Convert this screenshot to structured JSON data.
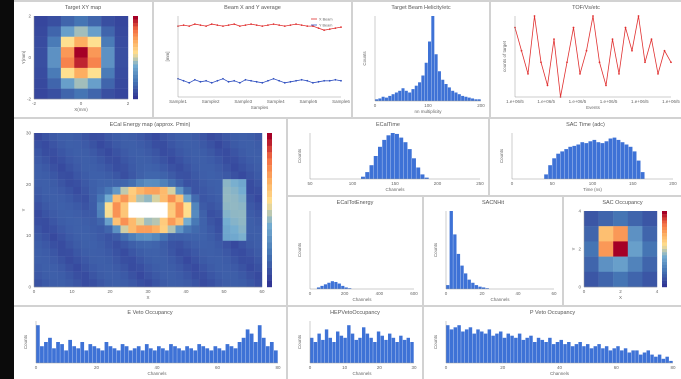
{
  "panels": [
    {
      "key": "target_xy",
      "title": "Target XY map"
    },
    {
      "key": "beam_xy",
      "title": "Beam X and Y average"
    },
    {
      "key": "beam_helicity",
      "title": "Target Beam Helicity/etc"
    },
    {
      "key": "tof_vs",
      "title": "TOF/Vs/etc"
    },
    {
      "key": "ecal_map",
      "title": "ECal Energy map (approx. Pmin)"
    },
    {
      "key": "ecal_time",
      "title": "ECalTime"
    },
    {
      "key": "sac_time",
      "title": "SAC Time (adc)"
    },
    {
      "key": "ecal_energy",
      "title": "ECalTotEnergy"
    },
    {
      "key": "sac_nhit",
      "title": "SACNHit"
    },
    {
      "key": "sac_occ",
      "title": "SAC Occupancy"
    },
    {
      "key": "eveto_occ",
      "title": "E Veto Occupancy"
    },
    {
      "key": "hep_occ",
      "title": "HEPVetoOccupancy"
    },
    {
      "key": "pveto_occ",
      "title": "P Veto Occupancy"
    }
  ],
  "chart_data": [
    {
      "key": "target_xy",
      "type": "heatmap",
      "xlabel": "X(mm)",
      "ylabel": "Y(mm)",
      "x_ticks": [
        "-2",
        "0",
        "2"
      ],
      "y_ticks": [
        "2",
        "0",
        "-2"
      ],
      "colorscale": "rdylbu",
      "values": [
        [
          0.05,
          0.08,
          0.15,
          0.2,
          0.15,
          0.08,
          0.05
        ],
        [
          0.06,
          0.15,
          0.35,
          0.45,
          0.35,
          0.15,
          0.06
        ],
        [
          0.07,
          0.22,
          0.55,
          0.7,
          0.55,
          0.22,
          0.07
        ],
        [
          0.08,
          0.3,
          0.75,
          1.0,
          0.75,
          0.3,
          0.08
        ],
        [
          0.08,
          0.3,
          0.8,
          0.95,
          0.8,
          0.3,
          0.08
        ],
        [
          0.07,
          0.22,
          0.55,
          0.7,
          0.55,
          0.22,
          0.07
        ],
        [
          0.06,
          0.15,
          0.35,
          0.45,
          0.35,
          0.15,
          0.06
        ],
        [
          0.05,
          0.08,
          0.15,
          0.2,
          0.15,
          0.08,
          0.05
        ]
      ]
    },
    {
      "key": "beam_xy",
      "type": "line",
      "xlabel": "Samples",
      "ylabel": "[mm]",
      "x_ticks": [
        "Sample1",
        "Sample2",
        "Sample3",
        "Sample4",
        "Sample5",
        "Sample6"
      ],
      "ylim": [
        -2,
        2
      ],
      "series": [
        {
          "name": "X Beam",
          "color": "#e03030",
          "values": [
            1.5,
            1.55,
            1.5,
            1.6,
            1.55,
            1.5,
            1.6,
            1.55,
            1.5,
            1.55,
            1.6,
            1.5,
            1.55,
            1.6,
            1.55,
            1.5,
            1.55,
            1.6,
            1.55,
            1.5,
            1.55,
            1.6,
            1.55,
            1.5,
            1.5,
            1.4,
            1.3,
            1.35,
            1.4,
            1.45
          ]
        },
        {
          "name": "Y Beam",
          "color": "#3050c0",
          "values": [
            -1.1,
            -1.2,
            -1.3,
            -1.15,
            -1.25,
            -1.2,
            -1.3,
            -1.2,
            -1.1,
            -1.25,
            -1.2,
            -1.3,
            -1.15,
            -1.2,
            -1.25,
            -1.3,
            -1.2,
            -1.1,
            -1.2,
            -1.3,
            -1.25,
            -1.2,
            -1.15,
            -1.2,
            -1.3,
            -1.25,
            -1.2,
            -1.2,
            -1.15,
            -1.2
          ]
        }
      ]
    },
    {
      "key": "beam_helicity",
      "type": "bar",
      "xlabel": "nn  multiplicity",
      "ylabel": "Counts",
      "x_ticks": [
        "0",
        "100",
        "200"
      ],
      "color": "#3e72d6",
      "values": [
        0.02,
        0.03,
        0.05,
        0.04,
        0.06,
        0.08,
        0.1,
        0.12,
        0.15,
        0.12,
        0.1,
        0.14,
        0.18,
        0.22,
        0.3,
        0.45,
        0.7,
        1.0,
        0.55,
        0.35,
        0.25,
        0.2,
        0.16,
        0.12,
        0.1,
        0.08,
        0.06,
        0.05,
        0.04,
        0.03,
        0.02,
        0.02
      ]
    },
    {
      "key": "tof_vs",
      "type": "line",
      "xlabel": "Events",
      "ylabel": "counts of target",
      "x_ticks": [
        "1.e+06/5",
        "1.e+06/5",
        "1.e+06/5",
        "1.e+06/5",
        "1.e+06/5",
        "1.e+06/5"
      ],
      "color": "#e03030",
      "values": [
        0.8,
        0.6,
        0.4,
        0.9,
        0.5,
        0.3,
        0.7,
        0.2,
        0.5,
        0.8,
        0.4,
        0.6,
        0.9,
        0.5,
        0.3,
        0.7,
        0.4,
        0.8,
        0.6,
        0.9,
        0.5,
        0.7,
        0.4,
        0.6,
        0.5
      ]
    },
    {
      "key": "ecal_map",
      "type": "heatmap",
      "xlabel": "X",
      "ylabel": "Y",
      "x_ticks": [
        "0",
        "10",
        "20",
        "30",
        "40",
        "50",
        "60"
      ],
      "y_ticks": [
        "30",
        "20",
        "10",
        "0"
      ],
      "colorscale": "rdylbu",
      "nx": 29,
      "ny": 20
    },
    {
      "key": "ecal_time",
      "type": "bar",
      "xlabel": "Channels",
      "ylabel": "Counts",
      "x_ticks": [
        "50",
        "100",
        "150",
        "200",
        "250"
      ],
      "color": "#3e72d6",
      "values": [
        0,
        0,
        0,
        0,
        0,
        0,
        0,
        0,
        0,
        0,
        0,
        0,
        0.05,
        0.15,
        0.3,
        0.5,
        0.7,
        0.85,
        0.95,
        1.0,
        0.98,
        0.9,
        0.8,
        0.65,
        0.45,
        0.25,
        0.1,
        0.03,
        0,
        0,
        0,
        0,
        0,
        0,
        0,
        0,
        0,
        0,
        0,
        0
      ]
    },
    {
      "key": "sac_time",
      "type": "bar",
      "xlabel": "Time (ns)",
      "ylabel": "Counts",
      "x_ticks": [
        "0",
        "50",
        "100",
        "150",
        "200"
      ],
      "color": "#3e72d6",
      "values": [
        0,
        0,
        0,
        0,
        0,
        0,
        0,
        0,
        0.1,
        0.3,
        0.45,
        0.55,
        0.6,
        0.65,
        0.7,
        0.72,
        0.75,
        0.8,
        0.78,
        0.82,
        0.85,
        0.8,
        0.78,
        0.82,
        0.88,
        0.9,
        0.85,
        0.8,
        0.75,
        0.7,
        0.6,
        0.4,
        0.15,
        0,
        0,
        0,
        0,
        0,
        0,
        0
      ]
    },
    {
      "key": "ecal_energy",
      "type": "bar",
      "xlabel": "Channels",
      "ylabel": "Counts",
      "x_ticks": [
        "0",
        "200",
        "400",
        "600"
      ],
      "color": "#3e72d6",
      "values": [
        0,
        0,
        0.02,
        0.04,
        0.06,
        0.08,
        0.1,
        0.09,
        0.07,
        0.04,
        0.02,
        0.01,
        0,
        0,
        0,
        0,
        0,
        0,
        0,
        0,
        0,
        0,
        0,
        0,
        0,
        0,
        0,
        0,
        0,
        0
      ]
    },
    {
      "key": "sac_nhit",
      "type": "bar",
      "xlabel": "Channels",
      "ylabel": "Counts",
      "x_ticks": [
        "0",
        "20",
        "40",
        "60"
      ],
      "color": "#3e72d6",
      "values": [
        0.05,
        1.0,
        0.7,
        0.45,
        0.3,
        0.2,
        0.12,
        0.08,
        0.05,
        0.03,
        0.02,
        0.01,
        0,
        0,
        0,
        0,
        0,
        0,
        0,
        0,
        0,
        0,
        0,
        0,
        0,
        0,
        0,
        0,
        0,
        0
      ]
    },
    {
      "key": "sac_occ",
      "type": "heatmap",
      "xlabel": "X",
      "ylabel": "Y",
      "x_ticks": [
        "0",
        "2",
        "4"
      ],
      "y_ticks": [
        "4",
        "2",
        "0"
      ],
      "colorscale": "rdylbu",
      "values": [
        [
          0.1,
          0.15,
          0.2,
          0.15,
          0.1
        ],
        [
          0.15,
          0.65,
          0.75,
          0.3,
          0.15
        ],
        [
          0.2,
          0.75,
          1.0,
          0.35,
          0.2
        ],
        [
          0.15,
          0.3,
          0.35,
          0.25,
          0.15
        ],
        [
          0.1,
          0.15,
          0.2,
          0.15,
          0.1
        ]
      ]
    },
    {
      "key": "eveto_occ",
      "type": "bar",
      "xlabel": "Channels",
      "ylabel": "Counts",
      "x_ticks": [
        "0",
        "20",
        "40",
        "60",
        "80"
      ],
      "color": "#3e72d6",
      "values": [
        0.9,
        0.4,
        0.5,
        0.6,
        0.35,
        0.5,
        0.45,
        0.3,
        0.55,
        0.4,
        0.35,
        0.5,
        0.3,
        0.45,
        0.4,
        0.35,
        0.3,
        0.5,
        0.4,
        0.35,
        0.3,
        0.45,
        0.4,
        0.3,
        0.35,
        0.4,
        0.3,
        0.45,
        0.35,
        0.3,
        0.4,
        0.35,
        0.3,
        0.45,
        0.4,
        0.35,
        0.3,
        0.4,
        0.35,
        0.3,
        0.45,
        0.4,
        0.35,
        0.3,
        0.4,
        0.35,
        0.3,
        0.45,
        0.4,
        0.35,
        0.5,
        0.6,
        0.8,
        0.7,
        0.5,
        0.9,
        0.6,
        0.4,
        0.5,
        0.3
      ]
    },
    {
      "key": "hep_occ",
      "type": "bar",
      "xlabel": "Channels",
      "ylabel": "Counts",
      "x_ticks": [
        "0",
        "10",
        "20",
        "30"
      ],
      "color": "#3e72d6",
      "values": [
        0.6,
        0.5,
        0.7,
        0.55,
        0.8,
        0.6,
        0.5,
        0.75,
        0.65,
        0.6,
        0.9,
        0.7,
        0.55,
        0.6,
        0.85,
        0.7,
        0.6,
        0.5,
        0.75,
        0.65,
        0.55,
        0.7,
        0.6,
        0.5,
        0.65,
        0.55,
        0.6,
        0.5
      ]
    },
    {
      "key": "pveto_occ",
      "type": "bar",
      "xlabel": "Channels",
      "ylabel": "Counts",
      "x_ticks": [
        "0",
        "20",
        "40",
        "60",
        "80"
      ],
      "color": "#3e72d6",
      "values": [
        0.9,
        0.8,
        0.85,
        0.9,
        0.75,
        0.8,
        0.85,
        0.7,
        0.8,
        0.75,
        0.7,
        0.8,
        0.65,
        0.7,
        0.75,
        0.6,
        0.7,
        0.65,
        0.6,
        0.7,
        0.55,
        0.6,
        0.65,
        0.5,
        0.6,
        0.55,
        0.5,
        0.6,
        0.45,
        0.5,
        0.55,
        0.45,
        0.5,
        0.4,
        0.45,
        0.5,
        0.4,
        0.45,
        0.35,
        0.4,
        0.45,
        0.35,
        0.4,
        0.3,
        0.35,
        0.4,
        0.3,
        0.35,
        0.25,
        0.3,
        0.3,
        0.2,
        0.25,
        0.3,
        0.2,
        0.15,
        0.2,
        0.1,
        0.15,
        0.05
      ]
    }
  ]
}
